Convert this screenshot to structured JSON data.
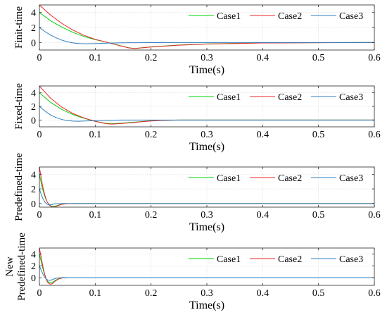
{
  "chart_data": [
    {
      "type": "line",
      "ylabel": "Finit-time",
      "xlabel": "Time(s)",
      "xlim": [
        0,
        0.6
      ],
      "ylim": [
        -1,
        5
      ],
      "xticks": [
        "0",
        "0.1",
        "0.2",
        "0.3",
        "0.4",
        "0.5",
        "0.6"
      ],
      "yticks": [
        "0",
        "2",
        "4"
      ],
      "grid": true,
      "legend_position": "top-right",
      "series": [
        {
          "name": "Case1",
          "color": "#00d400",
          "x": [
            0,
            0.02,
            0.04,
            0.06,
            0.08,
            0.1,
            0.12,
            0.14,
            0.16,
            0.17,
            0.2,
            0.25,
            0.3,
            0.4,
            0.6
          ],
          "y": [
            4.0,
            2.9,
            2.05,
            1.35,
            0.8,
            0.38,
            0.05,
            -0.32,
            -0.7,
            -0.8,
            -0.58,
            -0.33,
            -0.18,
            -0.05,
            0
          ]
        },
        {
          "name": "Case2",
          "color": "#e8262a",
          "x": [
            0,
            0.02,
            0.04,
            0.06,
            0.08,
            0.1,
            0.12,
            0.14,
            0.16,
            0.17,
            0.2,
            0.25,
            0.3,
            0.4,
            0.6
          ],
          "y": [
            5.0,
            3.65,
            2.55,
            1.65,
            0.95,
            0.42,
            0.05,
            -0.35,
            -0.72,
            -0.8,
            -0.6,
            -0.35,
            -0.2,
            -0.06,
            0
          ]
        },
        {
          "name": "Case3",
          "color": "#2f7fbf",
          "x": [
            0,
            0.01,
            0.02,
            0.03,
            0.04,
            0.05,
            0.06,
            0.07,
            0.08,
            0.1,
            0.12,
            0.15,
            0.2,
            0.3,
            0.6
          ],
          "y": [
            2.0,
            1.45,
            1.0,
            0.62,
            0.32,
            0.1,
            -0.05,
            -0.13,
            -0.17,
            -0.14,
            -0.08,
            -0.04,
            -0.01,
            0,
            0
          ]
        }
      ]
    },
    {
      "type": "line",
      "ylabel": "Fixed-time",
      "xlabel": "Time(s)",
      "xlim": [
        0,
        0.6
      ],
      "ylim": [
        -1,
        5
      ],
      "xticks": [
        "0",
        "0.1",
        "0.2",
        "0.3",
        "0.4",
        "0.5",
        "0.6"
      ],
      "yticks": [
        "0",
        "2",
        "4"
      ],
      "grid": true,
      "legend_position": "top-right",
      "series": [
        {
          "name": "Case1",
          "color": "#00d400",
          "x": [
            0,
            0.02,
            0.04,
            0.06,
            0.08,
            0.1,
            0.12,
            0.13,
            0.15,
            0.18,
            0.2,
            0.22,
            0.25,
            0.3,
            0.6
          ],
          "y": [
            4.0,
            2.6,
            1.55,
            0.8,
            0.25,
            -0.2,
            -0.5,
            -0.55,
            -0.45,
            -0.25,
            -0.12,
            -0.05,
            0,
            0,
            0
          ]
        },
        {
          "name": "Case2",
          "color": "#e8262a",
          "x": [
            0,
            0.02,
            0.04,
            0.06,
            0.08,
            0.1,
            0.12,
            0.13,
            0.15,
            0.18,
            0.2,
            0.22,
            0.25,
            0.3,
            0.6
          ],
          "y": [
            5.0,
            3.2,
            1.9,
            0.95,
            0.3,
            -0.2,
            -0.55,
            -0.6,
            -0.5,
            -0.28,
            -0.14,
            -0.05,
            0,
            0,
            0
          ]
        },
        {
          "name": "Case3",
          "color": "#2f7fbf",
          "x": [
            0,
            0.01,
            0.02,
            0.03,
            0.04,
            0.05,
            0.06,
            0.07,
            0.08,
            0.1,
            0.12,
            0.15,
            0.2,
            0.6
          ],
          "y": [
            2.0,
            1.3,
            0.75,
            0.35,
            0.08,
            -0.08,
            -0.16,
            -0.18,
            -0.15,
            -0.08,
            -0.03,
            0,
            0,
            0
          ]
        }
      ]
    },
    {
      "type": "line",
      "ylabel": "Predefined-time",
      "xlabel": "Time(s)",
      "xlim": [
        0,
        0.6
      ],
      "ylim": [
        -0.5,
        5
      ],
      "xticks": [
        "0",
        "0.1",
        "0.2",
        "0.3",
        "0.4",
        "0.5",
        "0.6"
      ],
      "yticks": [
        "0",
        "2",
        "4"
      ],
      "grid": true,
      "legend_position": "top-right",
      "series": [
        {
          "name": "Case1",
          "color": "#00d400",
          "x": [
            0,
            0.003,
            0.006,
            0.01,
            0.014,
            0.018,
            0.022,
            0.026,
            0.03,
            0.035,
            0.04,
            0.05,
            0.06,
            0.6
          ],
          "y": [
            4.0,
            2.9,
            1.9,
            0.9,
            0.2,
            -0.2,
            -0.38,
            -0.4,
            -0.33,
            -0.2,
            -0.1,
            -0.02,
            0,
            0
          ]
        },
        {
          "name": "Case2",
          "color": "#e8262a",
          "x": [
            0,
            0.003,
            0.006,
            0.01,
            0.014,
            0.018,
            0.022,
            0.026,
            0.03,
            0.035,
            0.04,
            0.05,
            0.06,
            0.6
          ],
          "y": [
            5.0,
            3.6,
            2.3,
            1.05,
            0.2,
            -0.25,
            -0.45,
            -0.48,
            -0.4,
            -0.25,
            -0.12,
            -0.03,
            0,
            0
          ]
        },
        {
          "name": "Case3",
          "color": "#2f7fbf",
          "x": [
            0,
            0.003,
            0.006,
            0.01,
            0.014,
            0.018,
            0.022,
            0.026,
            0.03,
            0.04,
            0.05,
            0.6
          ],
          "y": [
            2.0,
            1.3,
            0.7,
            0.15,
            -0.12,
            -0.2,
            -0.16,
            -0.08,
            -0.03,
            0,
            0,
            0
          ]
        }
      ]
    },
    {
      "type": "line",
      "ylabel": [
        "New",
        "Predefined-time"
      ],
      "xlabel": "Time(s)",
      "xlim": [
        0,
        0.6
      ],
      "ylim": [
        -1.3,
        5
      ],
      "xticks": [
        "0",
        "0.1",
        "0.2",
        "0.3",
        "0.4",
        "0.5",
        "0.6"
      ],
      "yticks": [
        "0",
        "2",
        "4"
      ],
      "grid": true,
      "legend_position": "top-right",
      "series": [
        {
          "name": "Case1",
          "color": "#00d400",
          "x": [
            0,
            0.003,
            0.006,
            0.009,
            0.012,
            0.015,
            0.018,
            0.021,
            0.024,
            0.028,
            0.032,
            0.036,
            0.042,
            0.05,
            0.6
          ],
          "y": [
            4.0,
            2.8,
            1.6,
            0.6,
            -0.2,
            -0.65,
            -0.85,
            -0.88,
            -0.75,
            -0.5,
            -0.28,
            -0.12,
            -0.03,
            0,
            0
          ]
        },
        {
          "name": "Case2",
          "color": "#e8262a",
          "x": [
            0,
            0.003,
            0.006,
            0.009,
            0.012,
            0.015,
            0.018,
            0.021,
            0.024,
            0.028,
            0.032,
            0.036,
            0.042,
            0.05,
            0.6
          ],
          "y": [
            5.0,
            3.5,
            2.0,
            0.75,
            -0.25,
            -0.8,
            -1.05,
            -1.1,
            -0.95,
            -0.62,
            -0.35,
            -0.15,
            -0.04,
            0,
            0
          ]
        },
        {
          "name": "Case3",
          "color": "#2f7fbf",
          "x": [
            0,
            0.003,
            0.006,
            0.009,
            0.012,
            0.015,
            0.018,
            0.022,
            0.026,
            0.03,
            0.036,
            0.045,
            0.6
          ],
          "y": [
            2.0,
            1.3,
            0.65,
            0.15,
            -0.2,
            -0.4,
            -0.45,
            -0.38,
            -0.22,
            -0.1,
            -0.02,
            0,
            0
          ]
        }
      ]
    }
  ]
}
